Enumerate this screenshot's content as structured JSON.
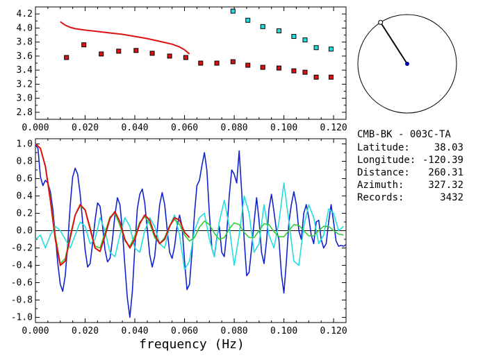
{
  "station": {
    "pair": "CMB-BK - 003C-TA",
    "latitude_label": "Latitude:",
    "latitude": "38.03",
    "longitude_label": "Longitude:",
    "longitude": "-120.39",
    "distance_label": "Distance:",
    "distance": "260.31",
    "azimuth_label": "Azimuth:",
    "azimuth": "327.32",
    "records_label": "Records:",
    "records": "3432"
  },
  "azimuth_deg": 327.32,
  "colors": {
    "red": "#dd1111",
    "cyan": "#22dddd",
    "blue": "#1122cc",
    "green": "#33cc33",
    "navy": "#0000aa",
    "axis": "#000000"
  },
  "chart_data": [
    {
      "type": "scatter",
      "title": "",
      "xlabel": "",
      "ylabel": "",
      "xlim": [
        0.0,
        0.125
      ],
      "ylim": [
        2.7,
        4.3
      ],
      "xticks": [
        "0.000",
        "0.020",
        "0.040",
        "0.060",
        "0.080",
        "0.100",
        "0.120"
      ],
      "yticks": [
        "2.8",
        "3.0",
        "3.2",
        "3.4",
        "3.6",
        "3.8",
        "4.0",
        "4.2"
      ],
      "series": [
        {
          "name": "measured-phase-velocity",
          "style": "red-squares",
          "x": [
            0.0125,
            0.0195,
            0.0265,
            0.0335,
            0.0405,
            0.047,
            0.054,
            0.0605,
            0.0665,
            0.073,
            0.0795,
            0.0855,
            0.0915,
            0.098,
            0.104,
            0.1085,
            0.113,
            0.119
          ],
          "y": [
            3.58,
            3.76,
            3.63,
            3.67,
            3.68,
            3.64,
            3.6,
            3.58,
            3.5,
            3.5,
            3.52,
            3.47,
            3.44,
            3.43,
            3.39,
            3.37,
            3.3,
            3.3
          ]
        },
        {
          "name": "model-phase-velocity",
          "style": "cyan-squares",
          "x": [
            0.0795,
            0.0855,
            0.0915,
            0.098,
            0.104,
            0.1085,
            0.113,
            0.119
          ],
          "y": [
            4.24,
            4.11,
            4.02,
            3.96,
            3.88,
            3.83,
            3.72,
            3.7
          ]
        },
        {
          "name": "dispersion-curve",
          "style": "red-line",
          "x": [
            0.01,
            0.012,
            0.014,
            0.016,
            0.02,
            0.025,
            0.03,
            0.035,
            0.04,
            0.045,
            0.05,
            0.055,
            0.058,
            0.06,
            0.062
          ],
          "y": [
            4.09,
            4.04,
            4.01,
            3.99,
            3.97,
            3.95,
            3.93,
            3.91,
            3.88,
            3.85,
            3.81,
            3.77,
            3.73,
            3.69,
            3.63
          ]
        }
      ]
    },
    {
      "type": "line",
      "title": "",
      "xlabel": "frequency (Hz)",
      "ylabel": "",
      "xlim": [
        0.0,
        0.125
      ],
      "ylim": [
        -1.06,
        1.06
      ],
      "xticks": [
        "0.000",
        "0.020",
        "0.040",
        "0.060",
        "0.080",
        "0.100",
        "0.120"
      ],
      "yticks": [
        "-1.0",
        "-0.8",
        "-0.6",
        "-0.4",
        "-0.2",
        "0.0",
        "0.2",
        "0.4",
        "0.6",
        "0.8",
        "1.0"
      ],
      "series": [
        {
          "name": "blue",
          "color": "#1122cc",
          "x": [
            0.0,
            0.001,
            0.002,
            0.003,
            0.004,
            0.005,
            0.006,
            0.007,
            0.008,
            0.009,
            0.01,
            0.011,
            0.012,
            0.013,
            0.014,
            0.015,
            0.016,
            0.017,
            0.018,
            0.019,
            0.02,
            0.021,
            0.022,
            0.023,
            0.024,
            0.025,
            0.026,
            0.027,
            0.028,
            0.029,
            0.03,
            0.031,
            0.032,
            0.033,
            0.034,
            0.035,
            0.036,
            0.037,
            0.038,
            0.039,
            0.04,
            0.041,
            0.042,
            0.043,
            0.044,
            0.045,
            0.046,
            0.047,
            0.048,
            0.049,
            0.05,
            0.051,
            0.052,
            0.053,
            0.054,
            0.055,
            0.056,
            0.057,
            0.058,
            0.059,
            0.06,
            0.061,
            0.062,
            0.063,
            0.064,
            0.065,
            0.066,
            0.067,
            0.068,
            0.069,
            0.07,
            0.071,
            0.072,
            0.073,
            0.074,
            0.075,
            0.076,
            0.077,
            0.078,
            0.079,
            0.08,
            0.081,
            0.082,
            0.083,
            0.084,
            0.085,
            0.086,
            0.087,
            0.088,
            0.089,
            0.09,
            0.091,
            0.092,
            0.093,
            0.094,
            0.095,
            0.096,
            0.097,
            0.098,
            0.099,
            0.1,
            0.101,
            0.102,
            0.103,
            0.104,
            0.105,
            0.106,
            0.107,
            0.108,
            0.109,
            0.11,
            0.111,
            0.112,
            0.113,
            0.114,
            0.115,
            0.116,
            0.117,
            0.118,
            0.119,
            0.12,
            0.121,
            0.122,
            0.123,
            0.124,
            0.125
          ],
          "y": [
            0.99,
            0.95,
            0.62,
            0.52,
            0.58,
            0.55,
            0.45,
            0.25,
            -0.05,
            -0.38,
            -0.62,
            -0.7,
            -0.52,
            -0.15,
            0.3,
            0.62,
            0.72,
            0.65,
            0.42,
            0.1,
            -0.22,
            -0.42,
            -0.38,
            -0.15,
            0.12,
            0.32,
            0.28,
            0.05,
            -0.22,
            -0.36,
            -0.32,
            -0.1,
            0.18,
            0.38,
            0.3,
            0.0,
            -0.4,
            -0.78,
            -1.0,
            -0.7,
            -0.2,
            0.25,
            0.42,
            0.48,
            0.32,
            0.02,
            -0.28,
            -0.42,
            -0.3,
            0.0,
            0.3,
            0.44,
            0.3,
            0.02,
            -0.25,
            -0.32,
            -0.18,
            0.05,
            0.18,
            0.05,
            -0.35,
            -0.68,
            -0.62,
            -0.25,
            0.2,
            0.52,
            0.58,
            0.75,
            0.9,
            0.7,
            0.2,
            -0.2,
            -0.3,
            -0.08,
            0.05,
            -0.25,
            -0.3,
            -0.02,
            0.4,
            0.7,
            0.65,
            0.55,
            0.92,
            0.45,
            -0.1,
            -0.52,
            -0.48,
            -0.2,
            0.1,
            0.38,
            0.12,
            -0.25,
            -0.38,
            -0.12,
            0.25,
            0.42,
            0.22,
            0.0,
            -0.1,
            -0.5,
            -0.72,
            -0.35,
            0.1,
            0.3,
            0.45,
            0.3,
            0.0,
            -0.1,
            0.2,
            0.3,
            0.15,
            -0.05,
            -0.15,
            0.1,
            0.12,
            -0.1,
            -0.2,
            -0.15,
            0.1,
            0.3,
            0.1,
            -0.12,
            -0.18,
            -0.17,
            -0.18,
            -0.16
          ]
        },
        {
          "name": "cyan",
          "color": "#22dddd",
          "x": [
            0.0,
            0.002,
            0.004,
            0.006,
            0.008,
            0.01,
            0.012,
            0.014,
            0.016,
            0.018,
            0.02,
            0.022,
            0.024,
            0.026,
            0.028,
            0.03,
            0.032,
            0.034,
            0.036,
            0.038,
            0.04,
            0.042,
            0.044,
            0.046,
            0.048,
            0.05,
            0.052,
            0.054,
            0.056,
            0.058,
            0.06,
            0.062,
            0.064,
            0.066,
            0.068,
            0.07,
            0.072,
            0.074,
            0.076,
            0.078,
            0.08,
            0.082,
            0.084,
            0.086,
            0.088,
            0.09,
            0.092,
            0.094,
            0.096,
            0.098,
            0.1,
            0.102,
            0.104,
            0.106,
            0.108,
            0.11,
            0.112,
            0.114,
            0.116,
            0.118,
            0.12,
            0.122,
            0.124
          ],
          "y": [
            -0.1,
            -0.05,
            -0.2,
            -0.05,
            0.05,
            0.0,
            -0.1,
            -0.2,
            -0.05,
            0.1,
            0.05,
            -0.15,
            -0.1,
            0.15,
            0.0,
            -0.25,
            -0.3,
            -0.05,
            0.15,
            0.05,
            -0.2,
            -0.25,
            0.0,
            0.15,
            0.05,
            -0.15,
            -0.2,
            0.05,
            0.18,
            -0.05,
            -0.45,
            -0.35,
            0.0,
            0.15,
            0.2,
            -0.1,
            -0.3,
            0.1,
            0.35,
            0.05,
            -0.4,
            -0.05,
            0.4,
            0.2,
            -0.25,
            -0.15,
            0.3,
            -0.05,
            -0.2,
            0.1,
            0.55,
            0.1,
            -0.35,
            -0.4,
            0.05,
            0.3,
            0.15,
            -0.15,
            -0.05,
            0.25,
            0.2,
            0.0,
            0.05
          ]
        },
        {
          "name": "green",
          "color": "#33cc33",
          "x": [
            0.0,
            0.002,
            0.004,
            0.006,
            0.008,
            0.01,
            0.012,
            0.014,
            0.016,
            0.018,
            0.02,
            0.022,
            0.024,
            0.026,
            0.028,
            0.03,
            0.032,
            0.034,
            0.036,
            0.038,
            0.04,
            0.042,
            0.044,
            0.046,
            0.048,
            0.05,
            0.052,
            0.054,
            0.056,
            0.058,
            0.06,
            0.062,
            0.064,
            0.066,
            0.068,
            0.07,
            0.072,
            0.074,
            0.076,
            0.078,
            0.08,
            0.082,
            0.084,
            0.086,
            0.088,
            0.09,
            0.092,
            0.094,
            0.096,
            0.098,
            0.1,
            0.102,
            0.104,
            0.106,
            0.108,
            0.11,
            0.112,
            0.114,
            0.116,
            0.118,
            0.12,
            0.122,
            0.124
          ],
          "y": [
            1.0,
            0.95,
            0.75,
            0.38,
            -0.05,
            -0.38,
            -0.32,
            -0.05,
            0.18,
            0.28,
            0.24,
            0.04,
            -0.18,
            -0.2,
            -0.02,
            0.16,
            0.2,
            0.06,
            -0.12,
            -0.18,
            -0.06,
            0.1,
            0.16,
            0.08,
            -0.08,
            -0.15,
            -0.08,
            0.06,
            0.13,
            0.07,
            -0.05,
            -0.12,
            -0.08,
            0.04,
            0.11,
            0.07,
            -0.03,
            -0.1,
            -0.08,
            0.02,
            0.09,
            0.07,
            -0.02,
            -0.08,
            -0.08,
            0.0,
            0.08,
            0.07,
            -0.01,
            -0.07,
            -0.07,
            0.0,
            0.07,
            0.06,
            0.0,
            -0.06,
            -0.06,
            0.0,
            0.05,
            0.05,
            0.0,
            -0.04,
            -0.05
          ]
        },
        {
          "name": "red",
          "color": "#dd1111",
          "x": [
            0.0,
            0.002,
            0.004,
            0.006,
            0.008,
            0.01,
            0.012,
            0.014,
            0.016,
            0.018,
            0.02,
            0.022,
            0.024,
            0.026,
            0.028,
            0.03,
            0.032,
            0.034,
            0.036,
            0.038,
            0.04,
            0.042,
            0.044,
            0.046,
            0.048,
            0.05,
            0.052,
            0.054,
            0.056,
            0.058,
            0.06,
            0.062
          ],
          "y": [
            1.0,
            0.95,
            0.74,
            0.35,
            -0.1,
            -0.4,
            -0.35,
            -0.08,
            0.18,
            0.3,
            0.24,
            0.02,
            -0.2,
            -0.24,
            -0.06,
            0.14,
            0.22,
            0.1,
            -0.1,
            -0.2,
            -0.1,
            0.08,
            0.18,
            0.12,
            -0.05,
            -0.15,
            -0.1,
            0.05,
            0.15,
            0.12,
            -0.02,
            -0.08
          ]
        }
      ]
    }
  ]
}
